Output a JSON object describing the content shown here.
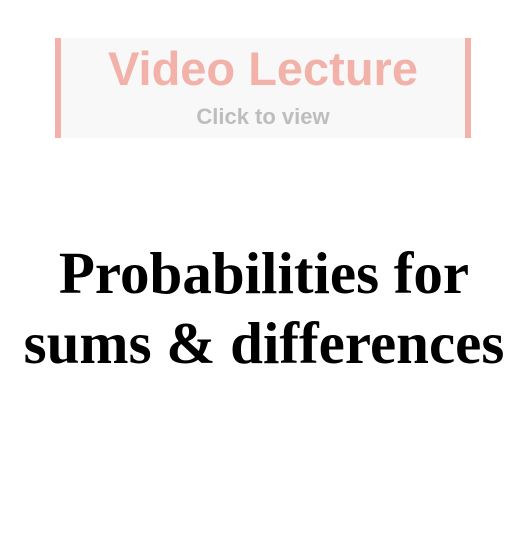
{
  "video_banner": {
    "title": "Video Lecture",
    "subtitle": "Click to view"
  },
  "heading": {
    "line1": "Probabilities for",
    "line2": "sums & differences"
  },
  "colors": {
    "banner_accent": "#f2b2a9",
    "banner_background": "#f8f8f8",
    "subtitle_text": "#bdbdbd",
    "heading_text": "#000000"
  }
}
